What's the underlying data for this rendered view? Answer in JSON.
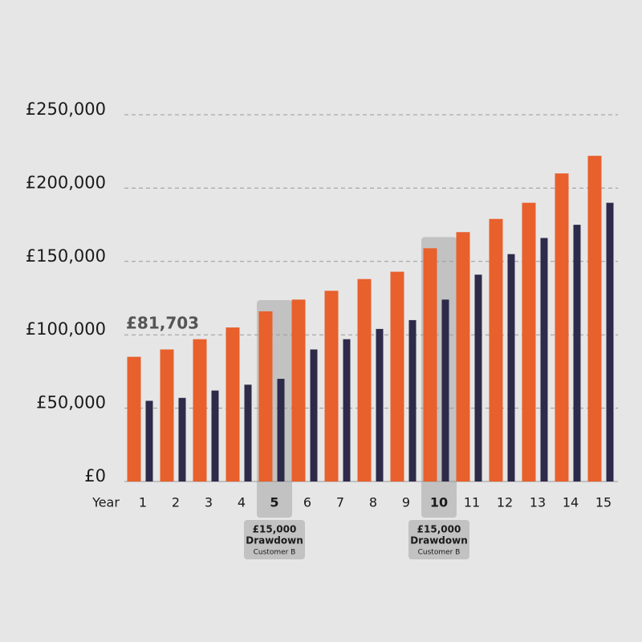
{
  "chart_data": {
    "type": "bar",
    "x_label": "Year",
    "categories": [
      "1",
      "2",
      "3",
      "4",
      "5",
      "6",
      "7",
      "8",
      "9",
      "10",
      "11",
      "12",
      "13",
      "14",
      "15"
    ],
    "series": [
      {
        "color": "#e8602c",
        "values": [
          85000,
          90000,
          97000,
          105000,
          116000,
          124000,
          130000,
          138000,
          143000,
          159000,
          170000,
          179000,
          190000,
          210000,
          222000
        ]
      },
      {
        "color": "#2e2a4a",
        "values": [
          55000,
          57000,
          62000,
          66000,
          70000,
          90000,
          97000,
          104000,
          110000,
          124000,
          141000,
          155000,
          166000,
          175000,
          190000
        ]
      }
    ],
    "ylim": [
      0,
      250000
    ],
    "yticks": [
      {
        "value": 0,
        "label": "£0"
      },
      {
        "value": 50000,
        "label": "£50,000"
      },
      {
        "value": 100000,
        "label": "£100,000"
      },
      {
        "value": 150000,
        "label": "£150,000"
      },
      {
        "value": 200000,
        "label": "£200,000"
      },
      {
        "value": 250000,
        "label": "£250,000"
      }
    ],
    "grid": true,
    "annotation": "£81,703",
    "callouts": [
      {
        "category": "5",
        "amount": "£15,000",
        "label": "Drawdown",
        "note": "Customer B"
      },
      {
        "category": "10",
        "amount": "£15,000",
        "label": "Drawdown",
        "note": "Customer B"
      }
    ]
  }
}
